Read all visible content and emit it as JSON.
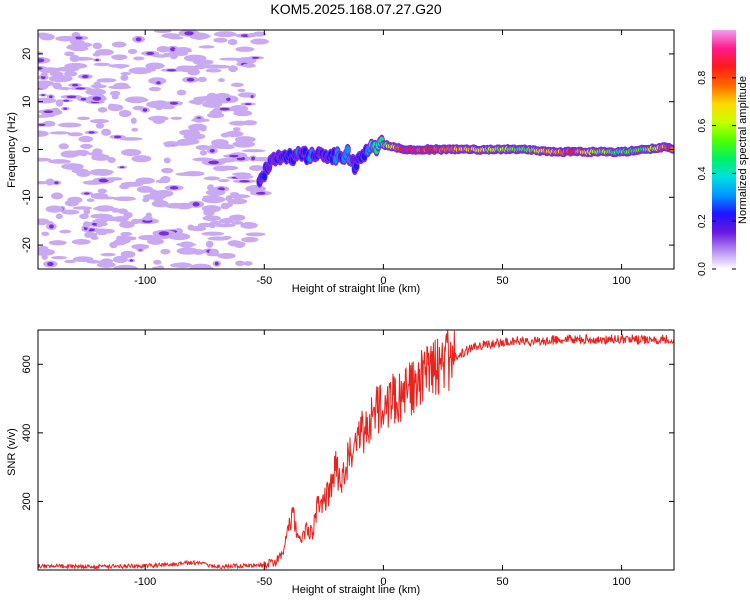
{
  "title": "KOM5.2025.168.07.27.G20",
  "colors": {
    "snr_line": "#e8231e",
    "noise_fill": "#c9a9f2",
    "noise_core": "#7a2ce0",
    "colormap": [
      "#ffffff",
      "#b48cf0",
      "#6a18e0",
      "#1e14ff",
      "#0096ff",
      "#00e0e0",
      "#00f064",
      "#50ff00",
      "#c8ff00",
      "#ffd700",
      "#ff6600",
      "#ff1a1a",
      "#ff1a8c",
      "#f0a0f0"
    ]
  },
  "chart_data": [
    {
      "type": "heatmap",
      "xlabel": "Height of straight line (km)",
      "ylabel": "Frequency (Hz)",
      "xlim": [
        -145,
        122
      ],
      "ylim": [
        -25,
        25
      ],
      "xticks": [
        -100,
        -50,
        0,
        50,
        100
      ],
      "yticks": [
        -20,
        -10,
        0,
        10,
        20
      ],
      "xtick_labels": [
        "-100",
        "-50",
        "0",
        "50",
        "100"
      ],
      "ytick_labels": [
        "-20",
        "-10",
        "0",
        "10",
        "20"
      ],
      "colorbar": {
        "label": "Normalized spectral amplitude",
        "range": [
          0,
          1
        ],
        "ticks": [
          0,
          0.2,
          0.4,
          0.6,
          0.8
        ],
        "tick_labels": [
          "0.0",
          "0.2",
          "0.4",
          "0.6",
          "0.8"
        ]
      },
      "noise_region_x": [
        -145,
        -50
      ],
      "signal_track": [
        {
          "x": -52,
          "f": -6,
          "a": 0.2
        },
        {
          "x": -48,
          "f": -3,
          "a": 0.25
        },
        {
          "x": -44,
          "f": -1.5,
          "a": 0.2
        },
        {
          "x": -40,
          "f": -1,
          "a": 0.3
        },
        {
          "x": -35,
          "f": -1.5,
          "a": 0.25
        },
        {
          "x": -30,
          "f": -1,
          "a": 0.35
        },
        {
          "x": -25,
          "f": -2,
          "a": 0.2
        },
        {
          "x": -20,
          "f": -1.5,
          "a": 0.3
        },
        {
          "x": -15,
          "f": -1,
          "a": 0.35
        },
        {
          "x": -12,
          "f": -3,
          "a": 0.25
        },
        {
          "x": -8,
          "f": -1.5,
          "a": 0.3
        },
        {
          "x": -5,
          "f": 0,
          "a": 0.4
        },
        {
          "x": 0,
          "f": 1,
          "a": 0.5
        },
        {
          "x": 5,
          "f": 0.5,
          "a": 0.75
        },
        {
          "x": 10,
          "f": 0,
          "a": 0.9
        },
        {
          "x": 20,
          "f": 0,
          "a": 0.85
        },
        {
          "x": 30,
          "f": 0,
          "a": 0.8
        },
        {
          "x": 40,
          "f": 0,
          "a": 0.7
        },
        {
          "x": 50,
          "f": 0,
          "a": 0.6
        },
        {
          "x": 60,
          "f": 0,
          "a": 0.55
        },
        {
          "x": 70,
          "f": -0.5,
          "a": 0.75
        },
        {
          "x": 80,
          "f": -0.5,
          "a": 0.85
        },
        {
          "x": 90,
          "f": -0.5,
          "a": 0.6
        },
        {
          "x": 100,
          "f": -0.5,
          "a": 0.5
        },
        {
          "x": 110,
          "f": 0,
          "a": 0.55
        },
        {
          "x": 118,
          "f": 0.5,
          "a": 0.8
        },
        {
          "x": 122,
          "f": 0,
          "a": 0.85
        }
      ]
    },
    {
      "type": "line",
      "xlabel": "Height of straight line (km)",
      "ylabel": "SNR (v/v)",
      "xlim": [
        -145,
        122
      ],
      "ylim": [
        0,
        700
      ],
      "xticks": [
        -100,
        -50,
        0,
        50,
        100
      ],
      "yticks": [
        200,
        400,
        600
      ],
      "xtick_labels": [
        "-100",
        "-50",
        "0",
        "50",
        "100"
      ],
      "ytick_labels": [
        "200",
        "400",
        "600"
      ],
      "series": [
        {
          "x": [
            -145,
            -120,
            -100,
            -90,
            -80,
            -70,
            -60,
            -50,
            -45,
            -42,
            -40,
            -38,
            -35,
            -32,
            -30,
            -28,
            -25,
            -22,
            -20,
            -18,
            -15,
            -12,
            -10,
            -8,
            -5,
            -2,
            0,
            5,
            10,
            15,
            20,
            25,
            30,
            35,
            40,
            45,
            50,
            55,
            60,
            70,
            80,
            90,
            100,
            110,
            122
          ],
          "y": [
            12,
            10,
            12,
            15,
            22,
            10,
            12,
            15,
            25,
            50,
            120,
            160,
            80,
            130,
            100,
            180,
            200,
            240,
            300,
            260,
            320,
            360,
            420,
            390,
            450,
            470,
            480,
            500,
            520,
            550,
            580,
            600,
            620,
            640,
            655,
            660,
            665,
            670,
            665,
            670,
            675,
            670,
            675,
            670,
            675
          ]
        }
      ]
    }
  ]
}
